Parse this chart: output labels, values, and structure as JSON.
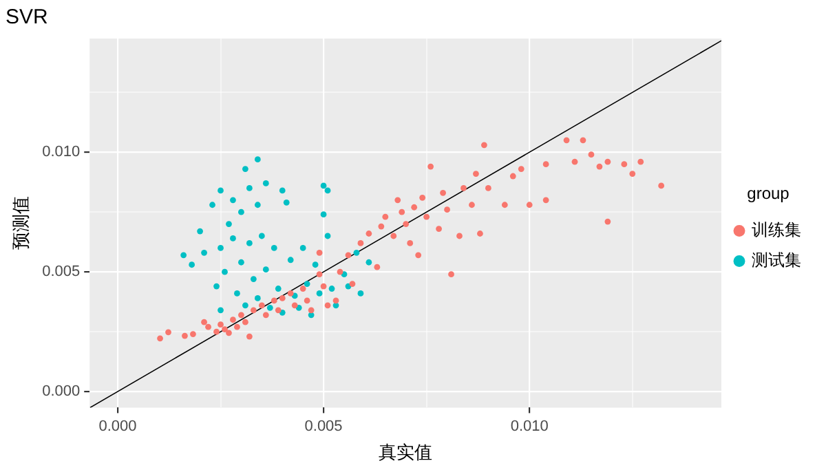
{
  "chart_data": {
    "type": "scatter",
    "title": "SVR",
    "xlabel": "真实值",
    "ylabel": "预测值",
    "legend_title": "group",
    "legend": "right",
    "grid": true,
    "marker": "circle",
    "xlim": [
      -0.00068,
      0.01466
    ],
    "ylim": [
      -0.00067,
      0.01475
    ],
    "xticks": [
      {
        "value": 0,
        "label": "0.000"
      },
      {
        "value": 0.0025,
        "label": null
      },
      {
        "value": 0.005,
        "label": "0.005"
      },
      {
        "value": 0.0075,
        "label": null
      },
      {
        "value": 0.01,
        "label": "0.010"
      },
      {
        "value": 0.0125,
        "label": null
      }
    ],
    "yticks": [
      {
        "value": 0,
        "label": "0.000"
      },
      {
        "value": 0.0025,
        "label": null
      },
      {
        "value": 0.005,
        "label": "0.005"
      },
      {
        "value": 0.0075,
        "label": null
      },
      {
        "value": 0.01,
        "label": "0.010"
      },
      {
        "value": 0.0125,
        "label": null
      }
    ],
    "series": [
      {
        "name": "训练集",
        "color": "#f8766d",
        "x": [
          0.00103,
          0.00123,
          0.00163,
          0.00183,
          0.0021,
          0.0022,
          0.0024,
          0.0025,
          0.0026,
          0.0027,
          0.0028,
          0.0029,
          0.003,
          0.0031,
          0.0032,
          0.0033,
          0.0035,
          0.0036,
          0.0038,
          0.0039,
          0.004,
          0.0042,
          0.0043,
          0.0045,
          0.0046,
          0.0047,
          0.0049,
          0.0049,
          0.005,
          0.0051,
          0.0053,
          0.0054,
          0.0056,
          0.0057,
          0.0059,
          0.0061,
          0.0063,
          0.0064,
          0.0065,
          0.0067,
          0.0068,
          0.0069,
          0.007,
          0.0071,
          0.0072,
          0.0073,
          0.0074,
          0.0075,
          0.0076,
          0.0078,
          0.0079,
          0.008,
          0.0081,
          0.0083,
          0.0084,
          0.0086,
          0.0087,
          0.0088,
          0.0089,
          0.009,
          0.0094,
          0.0096,
          0.0098,
          0.01,
          0.0104,
          0.0104,
          0.0109,
          0.0111,
          0.0113,
          0.0115,
          0.0117,
          0.0119,
          0.0119,
          0.0123,
          0.0125,
          0.0127,
          0.0132
        ],
        "values": [
          0.00222,
          0.00248,
          0.00233,
          0.0024,
          0.0029,
          0.0027,
          0.0025,
          0.0028,
          0.0026,
          0.00245,
          0.003,
          0.0027,
          0.0032,
          0.0029,
          0.0023,
          0.0034,
          0.0036,
          0.0032,
          0.0038,
          0.0034,
          0.0039,
          0.0041,
          0.0036,
          0.0043,
          0.0038,
          0.0034,
          0.0049,
          0.0058,
          0.0044,
          0.0036,
          0.0038,
          0.005,
          0.0057,
          0.0045,
          0.0062,
          0.0066,
          0.0052,
          0.0069,
          0.0073,
          0.0065,
          0.008,
          0.0075,
          0.007,
          0.0062,
          0.0077,
          0.0057,
          0.0081,
          0.0073,
          0.0094,
          0.0068,
          0.0083,
          0.0076,
          0.0049,
          0.0065,
          0.0085,
          0.0078,
          0.0091,
          0.0066,
          0.0103,
          0.0085,
          0.0078,
          0.009,
          0.0093,
          0.0078,
          0.0095,
          0.008,
          0.0105,
          0.0096,
          0.0105,
          0.0099,
          0.0094,
          0.0096,
          0.0071,
          0.0095,
          0.0091,
          0.0096,
          0.0086
        ]
      },
      {
        "name": "测试集",
        "color": "#00bfc4",
        "x": [
          0.0016,
          0.0018,
          0.002,
          0.0021,
          0.0023,
          0.0024,
          0.0025,
          0.0025,
          0.0025,
          0.0026,
          0.0027,
          0.0028,
          0.0028,
          0.0029,
          0.003,
          0.003,
          0.0031,
          0.0031,
          0.0032,
          0.0032,
          0.0033,
          0.0034,
          0.0034,
          0.0035,
          0.0034,
          0.0036,
          0.0036,
          0.0037,
          0.0038,
          0.0039,
          0.004,
          0.004,
          0.0041,
          0.0042,
          0.0043,
          0.0044,
          0.0045,
          0.0046,
          0.0047,
          0.0048,
          0.0049,
          0.005,
          0.005,
          0.0051,
          0.0051,
          0.0052,
          0.0053,
          0.0055,
          0.0056,
          0.0058,
          0.0059,
          0.0061
        ],
        "values": [
          0.0057,
          0.0053,
          0.0067,
          0.0058,
          0.0078,
          0.0044,
          0.0084,
          0.006,
          0.0034,
          0.005,
          0.007,
          0.008,
          0.0064,
          0.0041,
          0.0075,
          0.0054,
          0.0093,
          0.0036,
          0.0085,
          0.0062,
          0.0047,
          0.0078,
          0.0039,
          0.0065,
          0.0097,
          0.0087,
          0.0051,
          0.0035,
          0.006,
          0.0043,
          0.0084,
          0.0033,
          0.0079,
          0.0055,
          0.004,
          0.0035,
          0.006,
          0.0045,
          0.0032,
          0.0053,
          0.0041,
          0.0074,
          0.0086,
          0.0084,
          0.0065,
          0.0043,
          0.0036,
          0.0049,
          0.0044,
          0.0058,
          0.0041,
          0.0054
        ]
      },
      {
        "type": "line",
        "color": "#000000",
        "marker": "none",
        "x": [
          -0.00067,
          0.01466
        ],
        "values": [
          -0.00067,
          0.01466
        ]
      }
    ]
  }
}
